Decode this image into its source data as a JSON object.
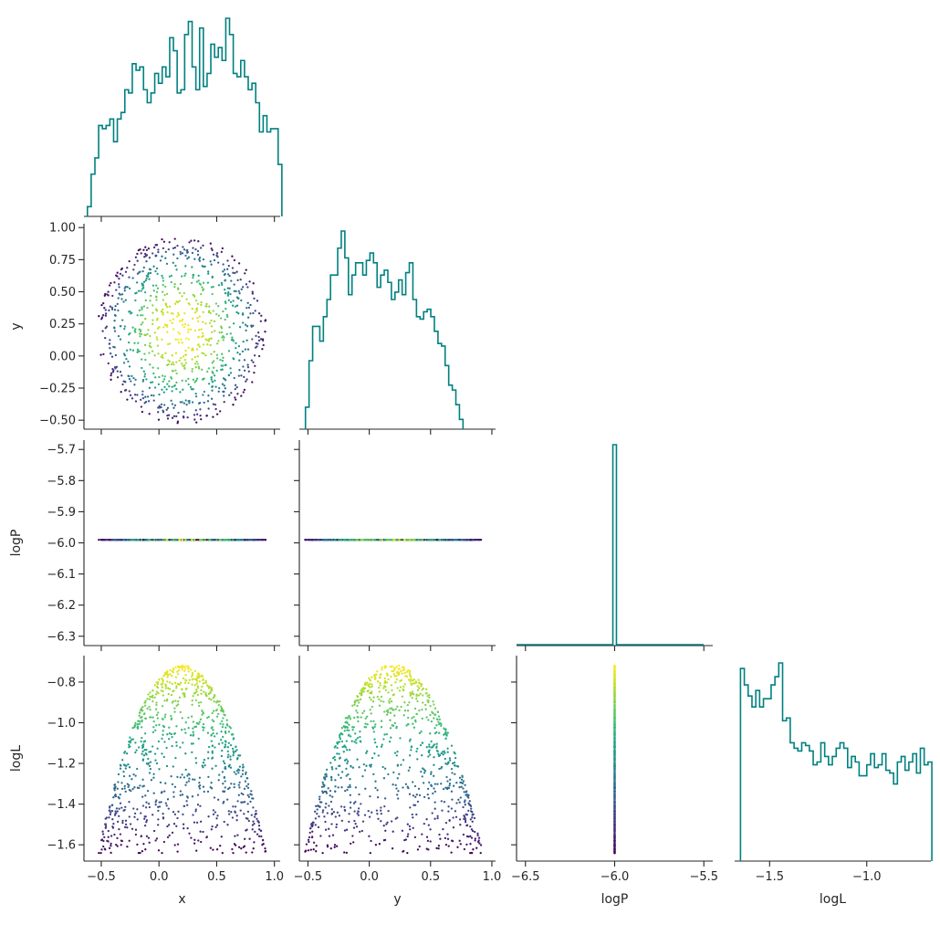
{
  "chart_data": {
    "type": "corner",
    "variables": [
      "x",
      "y",
      "logP",
      "logL"
    ],
    "colormap": "viridis",
    "histogram_color": "#008080",
    "panels": [
      {
        "kind": "hist",
        "var": "x",
        "xlim": [
          -0.65,
          1.05
        ],
        "bin_edges_start": -0.62,
        "bin_width": 0.0324,
        "counts": [
          0.3,
          1.3,
          1.8,
          2.8,
          2.7,
          2.8,
          3.0,
          2.3,
          3.0,
          3.2,
          3.9,
          3.8,
          4.7,
          4.5,
          4.6,
          3.9,
          3.5,
          3.8,
          4.4,
          4.1,
          4.6,
          4.3,
          5.5,
          5.1,
          3.8,
          3.9,
          5.6,
          6.0,
          4.6,
          3.9,
          5.8,
          4.0,
          4.4,
          5.3,
          4.9,
          5.2,
          4.8,
          6.1,
          5.6,
          4.4,
          4.3,
          4.8,
          4.3,
          3.9,
          4.1,
          3.5,
          2.6,
          3.1,
          2.6,
          2.7,
          2.7,
          1.6
        ],
        "hist_ymax": 6.1,
        "xticks": [
          -0.5,
          0.0,
          0.5,
          1.0
        ],
        "show_xticklabels": false
      },
      {
        "kind": "scatter",
        "xvar": "x",
        "yvar": "y",
        "xlim": [
          -0.65,
          1.05
        ],
        "ylim": [
          -0.57,
          1.03
        ],
        "xticks": [
          -0.5,
          0.0,
          0.5,
          1.0
        ],
        "yticks": [
          -0.5,
          -0.25,
          0.0,
          0.25,
          0.5,
          0.75,
          1.0
        ],
        "yticklabels": [
          "−0.50",
          "−0.25",
          "0.00",
          "0.25",
          "0.50",
          "0.75",
          "1.00"
        ],
        "ylabel": "y",
        "show_xticklabels": false,
        "shape": "disk",
        "center": [
          0.2,
          0.2
        ],
        "radius": 0.73,
        "n_points": 900
      },
      {
        "kind": "hist",
        "var": "y",
        "xlim": [
          -0.57,
          1.03
        ],
        "bin_edges_start": -0.52,
        "bin_width": 0.0292,
        "counts": [
          0.9,
          2.8,
          4.2,
          4.2,
          3.6,
          4.6,
          5.3,
          6.3,
          6.3,
          7.4,
          8.1,
          7.0,
          5.5,
          6.3,
          6.8,
          6.8,
          6.3,
          6.9,
          7.2,
          6.8,
          5.8,
          6.3,
          6.5,
          6.0,
          5.3,
          5.6,
          6.1,
          5.5,
          6.4,
          6.8,
          5.3,
          4.6,
          4.5,
          4.8,
          4.9,
          4.6,
          4.0,
          3.5,
          3.4,
          2.6,
          1.8,
          1.6,
          1.0,
          0.4
        ],
        "hist_ymax": 8.1,
        "xticks": [
          -0.5,
          0.0,
          0.5,
          1.0
        ],
        "show_xticklabels": false
      },
      {
        "kind": "scatter",
        "xvar": "x",
        "yvar": "logP",
        "xlim": [
          -0.65,
          1.05
        ],
        "ylim": [
          -6.33,
          -5.67
        ],
        "xticks": [
          -0.5,
          0.0,
          0.5,
          1.0
        ],
        "yticks": [
          -6.3,
          -6.2,
          -6.1,
          -6.0,
          -5.9,
          -5.8,
          -5.7
        ],
        "yticklabels": [
          "−6.3",
          "−6.2",
          "−6.1",
          "−6.0",
          "−5.9",
          "−5.8",
          "−5.7"
        ],
        "ylabel": "logP",
        "show_xticklabels": false,
        "shape": "hline",
        "value": -5.99
      },
      {
        "kind": "scatter",
        "xvar": "y",
        "yvar": "logP",
        "xlim": [
          -0.57,
          1.03
        ],
        "ylim": [
          -6.33,
          -5.67
        ],
        "xticks": [
          -0.5,
          0.0,
          0.5,
          1.0
        ],
        "yticks": [
          -6.3,
          -6.2,
          -6.1,
          -6.0,
          -5.9,
          -5.8,
          -5.7
        ],
        "show_xticklabels": false,
        "show_yticklabels": false,
        "shape": "hline",
        "value": -5.99
      },
      {
        "kind": "hist",
        "var": "logP",
        "xlim": [
          -6.55,
          -5.45
        ],
        "spike_at": -6.0,
        "spike_halfwidth": 0.01,
        "show_xticklabels": false,
        "xticks": [
          -6.5,
          -6.0,
          -5.5
        ]
      },
      {
        "kind": "scatter",
        "xvar": "x",
        "yvar": "logL",
        "xlim": [
          -0.65,
          1.05
        ],
        "ylim": [
          -1.68,
          -0.67
        ],
        "xticks": [
          -0.5,
          0.0,
          0.5,
          1.0
        ],
        "xticklabels": [
          "−0.5",
          "0.0",
          "0.5",
          "1.0"
        ],
        "yticks": [
          -1.6,
          -1.4,
          -1.2,
          -1.0,
          -0.8
        ],
        "yticklabels": [
          "−1.6",
          "−1.4",
          "−1.2",
          "−1.0",
          "−0.8"
        ],
        "xlabel": "x",
        "ylabel": "logL",
        "shape": "paraboloid",
        "center": 0.2
      },
      {
        "kind": "scatter",
        "xvar": "y",
        "yvar": "logL",
        "xlim": [
          -0.57,
          1.03
        ],
        "ylim": [
          -1.68,
          -0.67
        ],
        "xticks": [
          -0.5,
          0.0,
          0.5,
          1.0
        ],
        "xticklabels": [
          "−0.5",
          "0.0",
          "0.5",
          "1.0"
        ],
        "yticks": [
          -1.6,
          -1.4,
          -1.2,
          -1.0,
          -0.8
        ],
        "xlabel": "y",
        "show_yticklabels": false,
        "shape": "paraboloid",
        "center": 0.2
      },
      {
        "kind": "scatter",
        "xvar": "logP",
        "yvar": "logL",
        "xlim": [
          -6.55,
          -5.45
        ],
        "ylim": [
          -1.68,
          -0.67
        ],
        "xticks": [
          -6.5,
          -6.0,
          -5.5
        ],
        "xticklabels": [
          "−6.5",
          "−6.0",
          "−5.5"
        ],
        "yticks": [
          -1.6,
          -1.4,
          -1.2,
          -1.0,
          -0.8
        ],
        "xlabel": "logP",
        "show_yticklabels": false,
        "shape": "vline",
        "value": -6.0
      },
      {
        "kind": "hist",
        "var": "logL",
        "xlim": [
          -1.68,
          -0.67
        ],
        "bin_edges_start": -1.65,
        "bin_width": 0.0197,
        "counts": [
          7.0,
          6.4,
          6.0,
          5.6,
          6.2,
          5.6,
          5.9,
          5.9,
          6.4,
          6.7,
          7.2,
          5.1,
          5.2,
          4.3,
          4.1,
          4.0,
          4.3,
          4.2,
          4.0,
          3.5,
          3.6,
          4.3,
          3.8,
          3.5,
          3.8,
          4.1,
          4.3,
          4.1,
          3.4,
          3.8,
          3.6,
          3.1,
          3.1,
          3.5,
          3.9,
          3.4,
          3.5,
          3.9,
          3.3,
          3.2,
          2.8,
          3.6,
          3.8,
          3.3,
          3.6,
          3.9,
          3.2,
          4.1,
          3.5,
          3.6
        ],
        "hist_ymax": 7.2,
        "xticks": [
          -1.5,
          -1.0
        ],
        "xticklabels": [
          "−1.5",
          "−1.0"
        ],
        "xlabel": "logL"
      }
    ]
  }
}
